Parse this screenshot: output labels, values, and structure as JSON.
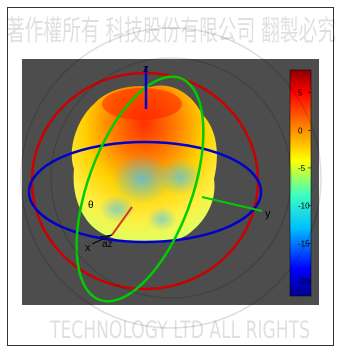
{
  "chart_data": {
    "type": "surface-3d",
    "title": "",
    "axes": {
      "x_label": "x",
      "y_label": "y",
      "z_label": "z",
      "theta_label": "θ",
      "az_label": "az"
    },
    "colorbar": {
      "ticks": [
        5,
        0,
        -5,
        -10,
        -15,
        -20
      ],
      "range": [
        -22,
        8
      ],
      "colormap": [
        "#00008b",
        "#0000ff",
        "#00bfff",
        "#40ffbf",
        "#ffff00",
        "#ff8000",
        "#ff0000",
        "#8b0000"
      ]
    },
    "background": "#4d4d4d",
    "circles": [
      {
        "name": "xy-plane",
        "color": "#0000cc"
      },
      {
        "name": "xz-plane",
        "color": "#cc0000"
      },
      {
        "name": "yz-plane",
        "color": "#00cc00"
      }
    ]
  },
  "watermark": {
    "text_top": "著作權所有 科技股份有限公司 翻製必究",
    "text_bottom": "TECHNOLOGY LTD ALL RIGHTS"
  }
}
